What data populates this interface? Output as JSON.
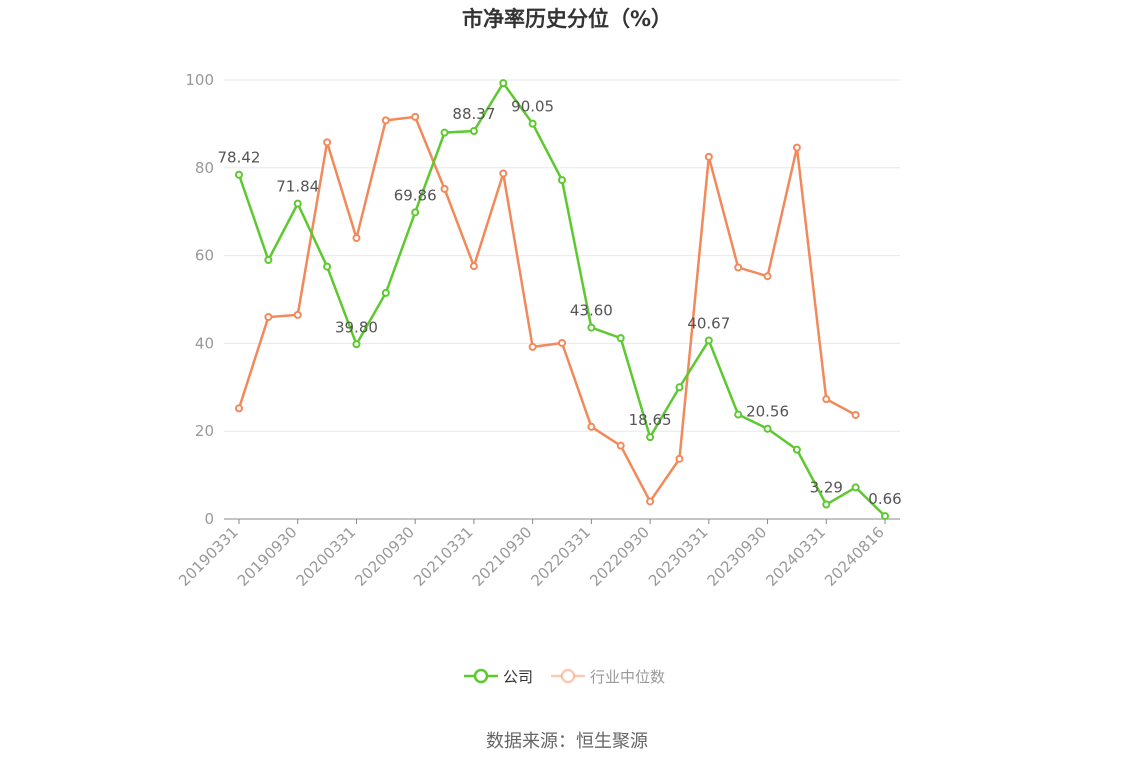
{
  "chart_data": {
    "type": "line",
    "title": "市净率历史分位（%）",
    "xlabel": "",
    "ylabel": "",
    "ylim": [
      0,
      100
    ],
    "yticks": [
      0,
      20,
      40,
      60,
      80,
      100
    ],
    "grid": true,
    "legend_position": "bottom",
    "x": [
      "20190331",
      "20190630",
      "20190930",
      "20191231",
      "20200331",
      "20200630",
      "20200930",
      "20201231",
      "20210331",
      "20210630",
      "20210930",
      "20211231",
      "20220331",
      "20220630",
      "20220930",
      "20221231",
      "20230331",
      "20230630",
      "20230930",
      "20231231",
      "20240331",
      "20240630",
      "20240816"
    ],
    "xtick_labels": [
      "20190331",
      "20190930",
      "20200331",
      "20200930",
      "20210331",
      "20210930",
      "20220331",
      "20220930",
      "20230331",
      "20230930",
      "20240331",
      "20240816"
    ],
    "series": [
      {
        "name": "公司",
        "color": "#5cc92e",
        "values": [
          78.42,
          59.0,
          71.84,
          57.5,
          39.8,
          51.5,
          69.86,
          88.0,
          88.37,
          99.3,
          90.05,
          77.2,
          43.6,
          41.2,
          18.65,
          30.0,
          40.67,
          23.8,
          20.56,
          15.8,
          3.29,
          7.2,
          0.66
        ],
        "data_labels": [
          {
            "index": 0,
            "text": "78.42"
          },
          {
            "index": 2,
            "text": "71.84"
          },
          {
            "index": 4,
            "text": "39.80"
          },
          {
            "index": 6,
            "text": "69.86"
          },
          {
            "index": 8,
            "text": "88.37"
          },
          {
            "index": 10,
            "text": "90.05"
          },
          {
            "index": 12,
            "text": "43.60"
          },
          {
            "index": 14,
            "text": "18.65"
          },
          {
            "index": 16,
            "text": "40.67"
          },
          {
            "index": 18,
            "text": "20.56"
          },
          {
            "index": 20,
            "text": "3.29"
          },
          {
            "index": 22,
            "text": "0.66"
          }
        ]
      },
      {
        "name": "行业中位数",
        "color": "#f2895a",
        "values": [
          25.2,
          46.0,
          46.5,
          85.8,
          64.0,
          90.8,
          91.6,
          75.2,
          57.6,
          78.7,
          39.2,
          40.1,
          21.0,
          16.7,
          4.0,
          13.7,
          82.5,
          57.3,
          55.3,
          84.6,
          27.3,
          23.7,
          null
        ]
      }
    ]
  },
  "source_text": "数据来源：恒生聚源"
}
